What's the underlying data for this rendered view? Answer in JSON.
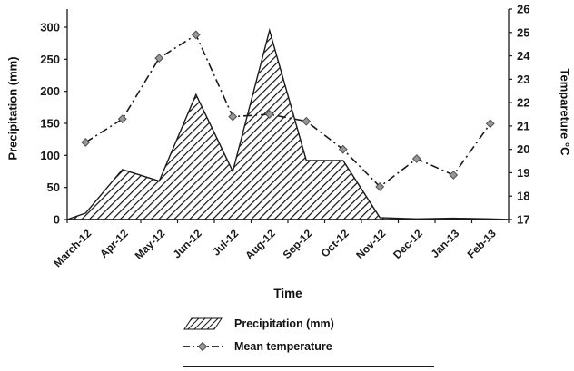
{
  "chart_data": {
    "type": "area",
    "title": "",
    "xlabel": "Time",
    "ylabel_left": "Precipitation (mm)",
    "ylabel_right": "Tempareture °C",
    "categories": [
      "March-12",
      "Apr-12",
      "May-12",
      "Jun-12",
      "Jul-12",
      "Aug-12",
      "Sep-12",
      "Oct-12",
      "Nov-12",
      "Dec-12",
      "Jan-13",
      "Feb-13"
    ],
    "series": [
      {
        "name": "Precipitation (mm)",
        "kind": "area-hatched",
        "axis": "left",
        "values": [
          10,
          78,
          60,
          195,
          75,
          295,
          92,
          92,
          3,
          1,
          2,
          1
        ]
      },
      {
        "name": "Mean temperature",
        "kind": "dashdot-line-diamond",
        "axis": "right",
        "values": [
          20.3,
          21.3,
          23.9,
          24.9,
          21.4,
          21.5,
          21.2,
          20.0,
          18.4,
          19.6,
          18.9,
          21.1
        ]
      }
    ],
    "left_axis": {
      "min": 0,
      "max": 300,
      "ticks": [
        0,
        50,
        100,
        150,
        200,
        250,
        300
      ]
    },
    "right_axis": {
      "min": 17,
      "max": 26,
      "ticks": [
        17,
        18,
        19,
        20,
        21,
        22,
        23,
        24,
        25,
        26
      ]
    },
    "legend": [
      {
        "label": "Precipitation (mm)",
        "swatch": "hatched-area-swatch"
      },
      {
        "label": "Mean temperature",
        "swatch": "dashdot-diamond-swatch"
      }
    ],
    "layout": {
      "grid": false,
      "legend_position": "bottom"
    },
    "colors": {
      "ink": "#1a1a1a",
      "marker_fill": "#979797",
      "marker_stroke": "#4f4f4f"
    }
  }
}
